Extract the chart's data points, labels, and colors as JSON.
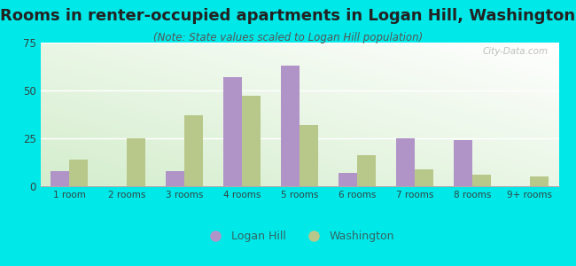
{
  "title": "Rooms in renter-occupied apartments in Logan Hill, Washington",
  "subtitle": "(Note: State values scaled to Logan Hill population)",
  "categories": [
    "1 room",
    "2 rooms",
    "3 rooms",
    "4 rooms",
    "5 rooms",
    "6 rooms",
    "7 rooms",
    "8 rooms",
    "9+ rooms"
  ],
  "logan_hill": [
    8,
    0,
    8,
    57,
    63,
    7,
    25,
    24,
    0
  ],
  "washington": [
    14,
    25,
    37,
    47,
    32,
    16,
    9,
    6,
    5
  ],
  "bar_color_logan": "#b094c8",
  "bar_color_washington": "#b8c88a",
  "legend_logan": "Logan Hill",
  "legend_washington": "Washington",
  "ylim": [
    0,
    75
  ],
  "yticks": [
    0,
    25,
    50,
    75
  ],
  "background_outer": "#00e8e8",
  "title_fontsize": 13,
  "subtitle_fontsize": 8.5,
  "watermark": "City-Data.com",
  "legend_text_color": "#336666",
  "tick_label_color": "#334444",
  "grid_color": "#ccddcc",
  "bar_width": 0.33
}
